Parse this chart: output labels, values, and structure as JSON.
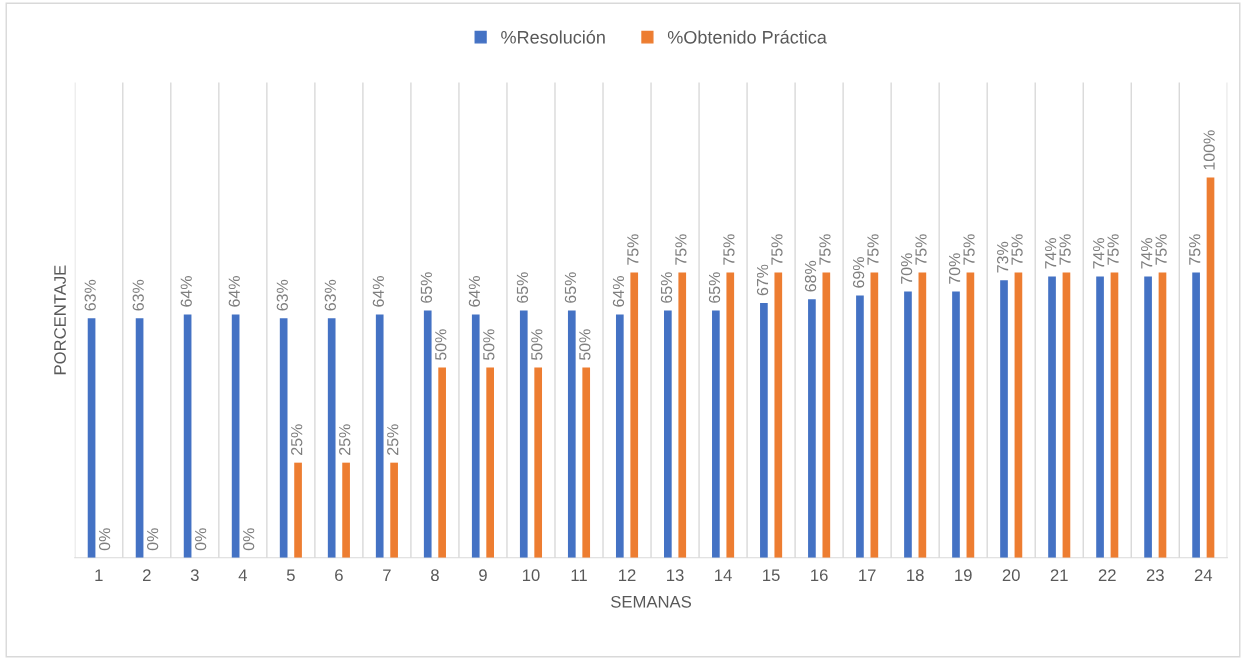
{
  "chart_data": {
    "type": "bar",
    "xlabel": "SEMANAS",
    "ylabel": "PORCENTAJE",
    "categories": [
      "1",
      "2",
      "3",
      "4",
      "5",
      "6",
      "7",
      "8",
      "9",
      "10",
      "11",
      "12",
      "13",
      "14",
      "15",
      "16",
      "17",
      "18",
      "19",
      "20",
      "21",
      "22",
      "23",
      "24"
    ],
    "series": [
      {
        "name": "%Resolución",
        "color": "#4472c4",
        "values": [
          63,
          63,
          64,
          64,
          63,
          63,
          64,
          65,
          64,
          65,
          65,
          64,
          65,
          65,
          67,
          68,
          69,
          70,
          70,
          73,
          74,
          74,
          74,
          75
        ],
        "value_labels": [
          "63%",
          "63%",
          "64%",
          "64%",
          "63%",
          "63%",
          "64%",
          "65%",
          "64%",
          "65%",
          "65%",
          "64%",
          "65%",
          "65%",
          "67%",
          "68%",
          "69%",
          "70%",
          "70%",
          "73%",
          "74%",
          "74%",
          "74%",
          "75%"
        ]
      },
      {
        "name": "%Obtenido Práctica",
        "color": "#ed7d31",
        "values": [
          0,
          0,
          0,
          0,
          25,
          25,
          25,
          50,
          50,
          50,
          50,
          75,
          75,
          75,
          75,
          75,
          75,
          75,
          75,
          75,
          75,
          75,
          75,
          100
        ],
        "value_labels": [
          "0%",
          "0%",
          "0%",
          "0%",
          "25%",
          "25%",
          "25%",
          "50%",
          "50%",
          "50%",
          "50%",
          "75%",
          "75%",
          "75%",
          "75%",
          "75%",
          "75%",
          "75%",
          "75%",
          "75%",
          "75%",
          "75%",
          "75%",
          "100%"
        ]
      }
    ],
    "ylim": [
      0,
      125
    ],
    "tick_labels": "x",
    "grid": "x",
    "legend": "top"
  }
}
